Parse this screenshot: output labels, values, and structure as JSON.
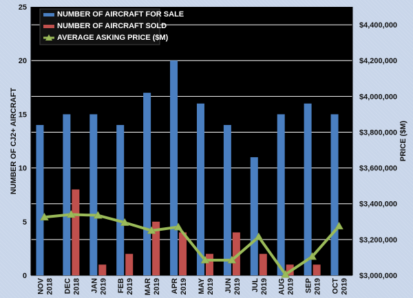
{
  "chart_data": {
    "type": "bar",
    "categories": [
      [
        "NOV",
        "2018"
      ],
      [
        "DEC",
        "2018"
      ],
      [
        "JAN",
        "2019"
      ],
      [
        "FEB",
        "2019"
      ],
      [
        "MAR",
        "2019"
      ],
      [
        "APR",
        "2019"
      ],
      [
        "MAY",
        "2019"
      ],
      [
        "JUN",
        "2019"
      ],
      [
        "JUL",
        "2019"
      ],
      [
        "AUG",
        "2019"
      ],
      [
        "SEP",
        "2019"
      ],
      [
        "OCT",
        "2019"
      ]
    ],
    "series": [
      {
        "name": "NUMBER OF AIRCRAFT FOR SALE",
        "type": "bar",
        "axis": "left",
        "color": "#4a7fc1",
        "values": [
          14,
          15,
          15,
          14,
          17,
          20,
          16,
          14,
          11,
          15,
          16,
          15
        ]
      },
      {
        "name": "NUMBER OF AIRCRAFT SOLD",
        "type": "bar",
        "axis": "left",
        "color": "#c0504d",
        "values": [
          0,
          8,
          1,
          2,
          5,
          4,
          2,
          4,
          2,
          1,
          1,
          0
        ]
      },
      {
        "name": "AVERAGE ASKING PRICE ($M)",
        "type": "line",
        "marker": "triangle",
        "axis": "right",
        "color": "#9bbb59",
        "values": [
          3325000,
          3340000,
          3335000,
          3295000,
          3250000,
          3270000,
          3085000,
          3085000,
          3215000,
          3005000,
          3105000,
          3275000
        ]
      }
    ],
    "ylabel": "NUMBER OF CJ2+ AIRCRAFT",
    "y2label": "PRICE ($M)",
    "ylim": [
      0,
      25
    ],
    "yticks": [
      "0",
      "5",
      "10",
      "15",
      "20",
      "25"
    ],
    "y2lim": [
      3000000,
      4500000
    ],
    "y2ticks": [
      "$3,000,000",
      "$3,200,000",
      "$3,400,000",
      "$3,600,000",
      "$3,800,000",
      "$4,000,000",
      "$4,200,000",
      "$4,400,000"
    ],
    "grid": true,
    "legend": "top-left",
    "plot_background": "#000000",
    "gridline_color": "#ffffff"
  }
}
